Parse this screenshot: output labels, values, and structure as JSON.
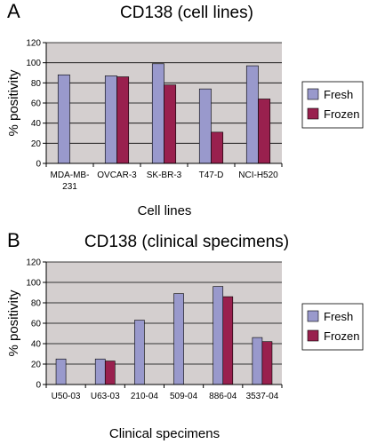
{
  "colors": {
    "plot_bg": "#d4cfcf",
    "fresh": "#9999cc",
    "frozen": "#99204e",
    "axis": "#000000",
    "grid": "#000000",
    "legend_bg": "#ffffff"
  },
  "chart_data": [
    {
      "panel": "A",
      "type": "bar",
      "title": "CD138 (cell lines)",
      "xlabel": "Cell lines",
      "ylabel": "% positivity",
      "ylim": [
        0,
        120
      ],
      "yticks": [
        "0",
        "20",
        "40",
        "60",
        "80",
        "100",
        "120"
      ],
      "grid": true,
      "legend_position": "right",
      "categories": [
        "MDA-MB-\n231",
        "OVCAR-3",
        "SK-BR-3",
        "T47-D",
        "NCI-H520"
      ],
      "series": [
        {
          "name": "Fresh",
          "values": [
            88,
            87,
            99,
            74,
            97
          ]
        },
        {
          "name": "Frozen",
          "values": [
            null,
            86,
            78,
            31,
            64
          ]
        }
      ]
    },
    {
      "panel": "B",
      "type": "bar",
      "title": "CD138 (clinical specimens)",
      "xlabel": "Clinical specimens",
      "ylabel": "% positivity",
      "ylim": [
        0,
        120
      ],
      "yticks": [
        "0",
        "20",
        "40",
        "60",
        "80",
        "100",
        "120"
      ],
      "grid": true,
      "legend_position": "right",
      "categories": [
        "U50-03",
        "U63-03",
        "210-04",
        "509-04",
        "886-04",
        "3537-04"
      ],
      "series": [
        {
          "name": "Fresh",
          "values": [
            25,
            25,
            63,
            89,
            96,
            46
          ]
        },
        {
          "name": "Frozen",
          "values": [
            null,
            23,
            null,
            null,
            86,
            42
          ]
        }
      ]
    }
  ]
}
